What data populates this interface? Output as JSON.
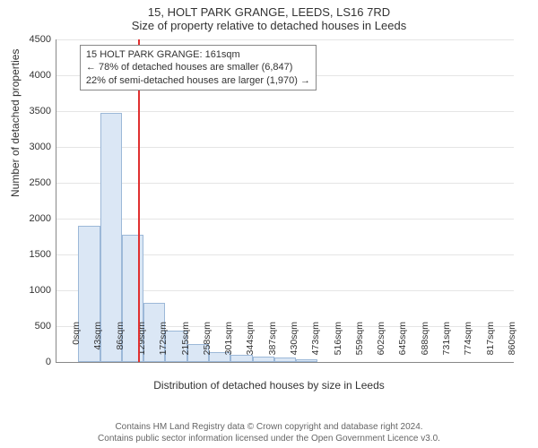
{
  "title_line1": "15, HOLT PARK GRANGE, LEEDS, LS16 7RD",
  "title_line2": "Size of property relative to detached houses in Leeds",
  "ylabel": "Number of detached properties",
  "xlabel": "Distribution of detached houses by size in Leeds",
  "chart": {
    "type": "histogram",
    "ylim": [
      0,
      4500
    ],
    "ytick_step": 500,
    "xtick_step": 43,
    "xtick_unit": "sqm",
    "xlim_bins": 21,
    "bar_fill": "#dbe7f5",
    "bar_border": "#9cb8d8",
    "grid_color": "#e5e5e5",
    "axis_color": "#888888",
    "background": "#ffffff",
    "bins": [
      {
        "x": 0,
        "count": 0
      },
      {
        "x": 43,
        "count": 1900
      },
      {
        "x": 86,
        "count": 3480
      },
      {
        "x": 129,
        "count": 1770
      },
      {
        "x": 172,
        "count": 830
      },
      {
        "x": 215,
        "count": 440
      },
      {
        "x": 258,
        "count": 250
      },
      {
        "x": 301,
        "count": 140
      },
      {
        "x": 344,
        "count": 100
      },
      {
        "x": 387,
        "count": 80
      },
      {
        "x": 430,
        "count": 60
      },
      {
        "x": 473,
        "count": 40
      },
      {
        "x": 516,
        "count": 0
      },
      {
        "x": 559,
        "count": 0
      },
      {
        "x": 602,
        "count": 0
      },
      {
        "x": 645,
        "count": 0
      },
      {
        "x": 688,
        "count": 0
      },
      {
        "x": 731,
        "count": 0
      },
      {
        "x": 774,
        "count": 0
      },
      {
        "x": 817,
        "count": 0
      },
      {
        "x": 860,
        "count": 0
      }
    ],
    "marker": {
      "value_sqm": 161,
      "color": "#e03030"
    }
  },
  "annotation": {
    "line1": "15 HOLT PARK GRANGE: 161sqm",
    "line2": "← 78% of detached houses are smaller (6,847)",
    "line3": "22% of semi-detached houses are larger (1,970) →",
    "border_color": "#888888",
    "background": "#ffffff",
    "font_size": 11
  },
  "footer": {
    "line1": "Contains HM Land Registry data © Crown copyright and database right 2024.",
    "line2": "Contains public sector information licensed under the Open Government Licence v3.0."
  }
}
